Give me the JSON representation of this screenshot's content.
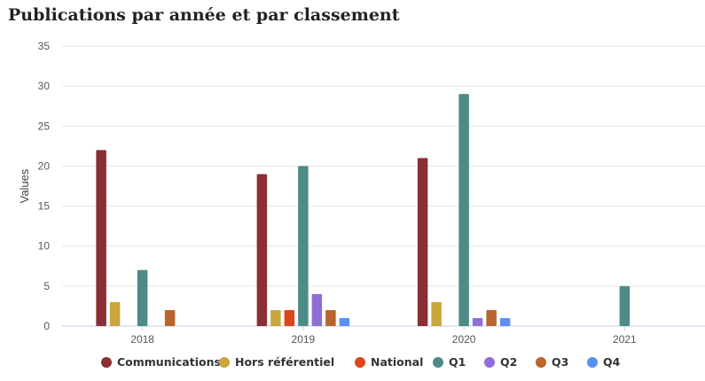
{
  "chart_data": {
    "type": "bar",
    "title": "Publications par année et par classement",
    "ylabel": "Values",
    "xlabel": "",
    "categories": [
      "2018",
      "2019",
      "2020",
      "2021"
    ],
    "ylim": [
      0,
      35
    ],
    "yticks": [
      0,
      5,
      10,
      15,
      20,
      25,
      30,
      35
    ],
    "grid": true,
    "legend_position": "bottom",
    "series": [
      {
        "name": "Communications",
        "color": "#8b2f35",
        "values": [
          22,
          19,
          21,
          0
        ]
      },
      {
        "name": "Hors référentiel",
        "color": "#c9a63c",
        "values": [
          3,
          2,
          3,
          0
        ]
      },
      {
        "name": "National",
        "color": "#d9471b",
        "values": [
          0,
          2,
          0,
          0
        ]
      },
      {
        "name": "Q1",
        "color": "#4e8b88",
        "values": [
          7,
          20,
          29,
          5
        ]
      },
      {
        "name": "Q2",
        "color": "#8f6fd6",
        "values": [
          0,
          4,
          1,
          0
        ]
      },
      {
        "name": "Q3",
        "color": "#b8652e",
        "values": [
          2,
          2,
          2,
          0
        ]
      },
      {
        "name": "Q4",
        "color": "#5b8ff0",
        "values": [
          0,
          1,
          1,
          0
        ]
      }
    ]
  }
}
